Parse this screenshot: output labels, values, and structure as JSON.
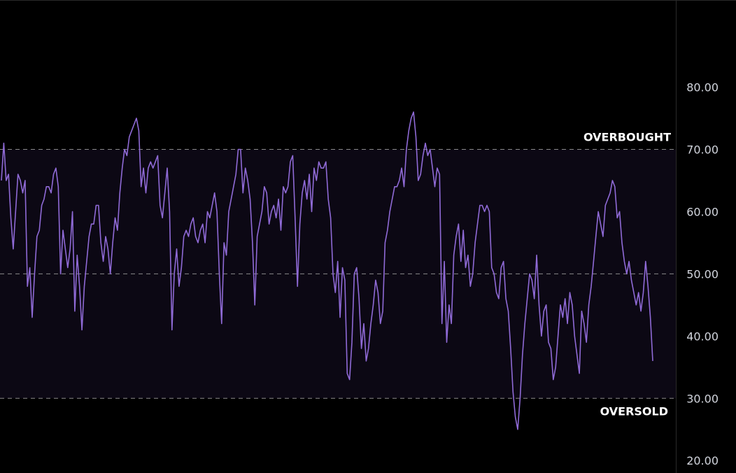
{
  "chart_data": {
    "type": "line",
    "title": "",
    "xlabel": "",
    "ylabel": "",
    "ylim": [
      18,
      94
    ],
    "y_ticks": [
      {
        "value": 80,
        "label": "80.00"
      },
      {
        "value": 70,
        "label": "70.00"
      },
      {
        "value": 60,
        "label": "60.00"
      },
      {
        "value": 50,
        "label": "50.00"
      },
      {
        "value": 40,
        "label": "40.00"
      },
      {
        "value": 30,
        "label": "30.00"
      },
      {
        "value": 20,
        "label": "20.00"
      }
    ],
    "levels": {
      "overbought": {
        "value": 70,
        "label": "OVERBOUGHT"
      },
      "middle": {
        "value": 50
      },
      "oversold": {
        "value": 30,
        "label": "OVERSOLD"
      }
    },
    "grid": false,
    "colors": {
      "background": "#000000",
      "band_fill": "#0c0814",
      "line": "#8f6ad6",
      "level_line": "#8a8a8a",
      "axis_text": "#d1d4dc",
      "label_text": "#ffffff",
      "axis_border": "#2a2a2a"
    },
    "series": [
      {
        "values": [
          65,
          71,
          65,
          66,
          59,
          54,
          60,
          66,
          65,
          63,
          65,
          48,
          51,
          43,
          50,
          56,
          57,
          61,
          62,
          64,
          64,
          63,
          66,
          67,
          64,
          50,
          57,
          54,
          51,
          54,
          60,
          44,
          53,
          48,
          41,
          48,
          52,
          56,
          58,
          58,
          61,
          61,
          55,
          52,
          56,
          54,
          50,
          55,
          59,
          57,
          63,
          67,
          70,
          69,
          72,
          73,
          74,
          75,
          73,
          64,
          67,
          63,
          67,
          68,
          67,
          68,
          69,
          61,
          59,
          63,
          67,
          60,
          41,
          50,
          54,
          48,
          51,
          56,
          57,
          56,
          58,
          59,
          56,
          55,
          57,
          58,
          55,
          60,
          59,
          61,
          63,
          60,
          50,
          42,
          55,
          53,
          60,
          62,
          64,
          66,
          70,
          70,
          63,
          67,
          65,
          62,
          55,
          45,
          56,
          58,
          60,
          64,
          63,
          58,
          60,
          61,
          59,
          62,
          57,
          64,
          63,
          64,
          68,
          69,
          59,
          48,
          58,
          63,
          65,
          62,
          66,
          60,
          67,
          65,
          68,
          67,
          67,
          68,
          62,
          59,
          50,
          47,
          52,
          43,
          51,
          49,
          34,
          33,
          39,
          50,
          51,
          46,
          38,
          42,
          36,
          38,
          42,
          45,
          49,
          47,
          42,
          44,
          55,
          57,
          60,
          62,
          64,
          64,
          65,
          67,
          64,
          70,
          73,
          75,
          76,
          72,
          65,
          66,
          69,
          71,
          69,
          70,
          67,
          64,
          67,
          66,
          42,
          52,
          39,
          45,
          42,
          53,
          56,
          58,
          52,
          57,
          51,
          53,
          48,
          50,
          55,
          58,
          61,
          61,
          60,
          61,
          60,
          51,
          50,
          47,
          46,
          51,
          52,
          46,
          44,
          38,
          31,
          27,
          25,
          30,
          37,
          42,
          46,
          50,
          49,
          46,
          53,
          45,
          40,
          44,
          45,
          39,
          38,
          33,
          35,
          40,
          45,
          43,
          46,
          42,
          47,
          45,
          40,
          37,
          34,
          44,
          42,
          39,
          45,
          48,
          52,
          56,
          60,
          58,
          56,
          61,
          62,
          63,
          65,
          64,
          59,
          60,
          55,
          52,
          50,
          52,
          49,
          47,
          45,
          47,
          44,
          47,
          52,
          48,
          43,
          36
        ]
      }
    ]
  }
}
